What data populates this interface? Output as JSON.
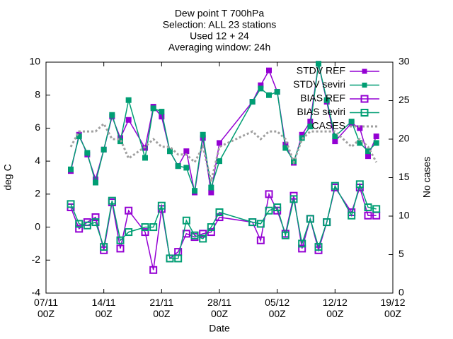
{
  "chart_data": {
    "type": "line",
    "title_lines": [
      "Dew point T 700hPa",
      "Selection: ALL      23 stations",
      "Used 12 + 24",
      "Averaging window: 24h"
    ],
    "xlabel": "Date",
    "ylabel": "deg C",
    "y2label": "No cases",
    "x": [
      3,
      4,
      5,
      6,
      7,
      8,
      9,
      10,
      12,
      13,
      14,
      15,
      16,
      17,
      18,
      19,
      20,
      21,
      25,
      26,
      27,
      28,
      29,
      30,
      31,
      32,
      33,
      34,
      35,
      37,
      38,
      39,
      40
    ],
    "xlim": [
      0,
      42
    ],
    "xticks": [
      {
        "value": 0,
        "label": "07/11\n00Z"
      },
      {
        "value": 7,
        "label": "14/11\n00Z"
      },
      {
        "value": 14,
        "label": "21/11\n00Z"
      },
      {
        "value": 21,
        "label": "28/11\n00Z"
      },
      {
        "value": 28,
        "label": "05/12\n00Z"
      },
      {
        "value": 35,
        "label": "12/12\n00Z"
      },
      {
        "value": 42,
        "label": "19/12\n00Z"
      }
    ],
    "ylim": [
      -4,
      10
    ],
    "yticks": [
      -4,
      -2,
      0,
      2,
      4,
      6,
      8,
      10
    ],
    "y2lim": [
      0,
      30
    ],
    "y2ticks": [
      0,
      5,
      10,
      15,
      20,
      25,
      30
    ],
    "legend": "top-right",
    "series": [
      {
        "name": "STDV REF",
        "color": "#9400d3",
        "marker": "box-x",
        "values": [
          3.4,
          5.6,
          4.4,
          2.9,
          4.7,
          6.7,
          5.4,
          6.5,
          4.8,
          7.3,
          6.7,
          4.6,
          3.7,
          4.6,
          2.1,
          5.4,
          2.1,
          5.1,
          7.6,
          8.6,
          9.5,
          8.2,
          5.0,
          3.9,
          5.6,
          6.4,
          9.9,
          7.6,
          5.2,
          6.3,
          6.0,
          4.3,
          5.5
        ]
      },
      {
        "name": "STDV seviri",
        "color": "#009e73",
        "marker": "box-x",
        "values": [
          3.5,
          5.5,
          4.5,
          2.7,
          4.7,
          6.8,
          5.2,
          7.7,
          4.2,
          7.2,
          7.0,
          4.6,
          3.7,
          3.6,
          2.2,
          5.6,
          2.4,
          4.0,
          7.6,
          8.4,
          8.0,
          8.2,
          4.8,
          4.0,
          5.4,
          6.1,
          9.9,
          7.7,
          5.5,
          6.4,
          5.1,
          4.6,
          5.1
        ]
      },
      {
        "name": "BIAS REF",
        "color": "#9400d3",
        "marker": "open-box",
        "values": [
          1.2,
          -0.1,
          0.3,
          0.6,
          -1.4,
          1.5,
          -1.3,
          1.0,
          -0.3,
          -2.6,
          1.1,
          -1.9,
          -1.5,
          -0.4,
          -0.6,
          -0.4,
          -0.3,
          0.6,
          0.3,
          -0.8,
          2.0,
          1.0,
          -0.4,
          1.9,
          -1.3,
          0.5,
          -1.4,
          0.3,
          2.4,
          0.9,
          2.4,
          0.7,
          0.7
        ]
      },
      {
        "name": "BIAS seviri",
        "color": "#009e73",
        "marker": "open-box",
        "values": [
          1.4,
          0.2,
          0.1,
          0.3,
          -1.2,
          1.6,
          -0.8,
          -0.3,
          0.0,
          0.0,
          1.3,
          -1.9,
          -1.9,
          0.4,
          -0.5,
          -0.7,
          0.0,
          0.9,
          0.3,
          0.2,
          1.0,
          1.2,
          -0.5,
          1.7,
          -1.0,
          0.5,
          -1.2,
          0.3,
          2.5,
          0.7,
          2.6,
          1.2,
          1.1
        ]
      },
      {
        "name": "CASES",
        "color": "#a0a0a0",
        "marker": "none",
        "dash": "dotted",
        "axis": "y2",
        "values": [
          19,
          21,
          21,
          21,
          22,
          20,
          20,
          17.5,
          19,
          20,
          19,
          19,
          18,
          18,
          17,
          19,
          14.5,
          19,
          21,
          20,
          21,
          21,
          20,
          17,
          20,
          21,
          21,
          21,
          21,
          19,
          20,
          19,
          17
        ]
      }
    ]
  }
}
